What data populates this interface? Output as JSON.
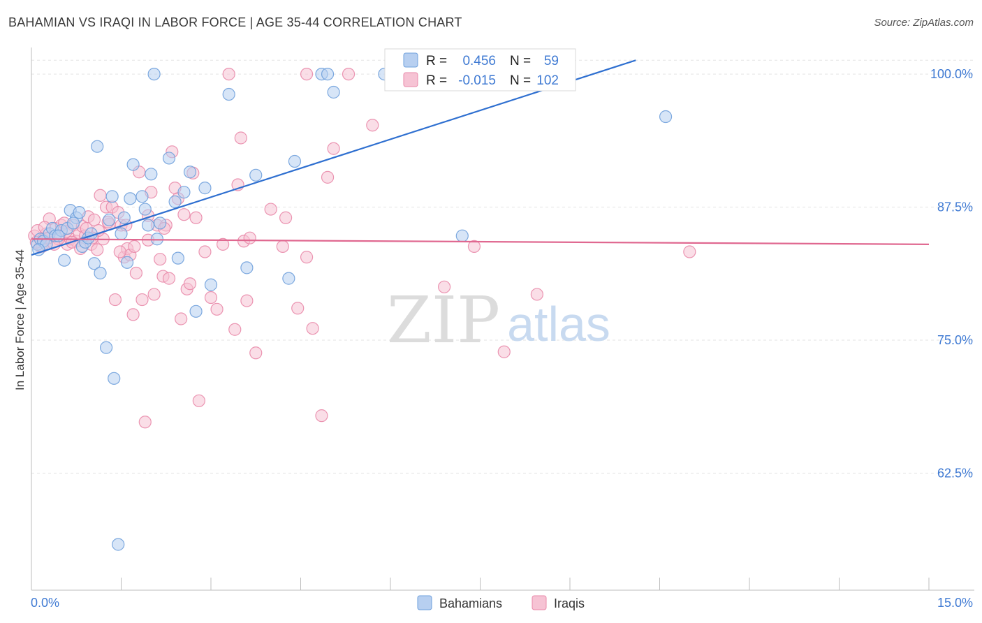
{
  "title": "BAHAMIAN VS IRAQI IN LABOR FORCE | AGE 35-44 CORRELATION CHART",
  "source": "Source: ZipAtlas.com",
  "watermark": {
    "zip": "ZIP",
    "atlas": "atlas"
  },
  "colors": {
    "blue": "#6fa0dc",
    "blue_fill": "#b7cff0",
    "blue_line": "#2e6fd0",
    "pink": "#e98aaa",
    "pink_fill": "#f6c3d4",
    "pink_line": "#e06890",
    "tick_label": "#3f7ad3",
    "grid": "#e3e3e3"
  },
  "stats": {
    "r_label": "R =",
    "n_label": "N =",
    "bahamians": {
      "r": "0.456",
      "n": "59"
    },
    "iraqis": {
      "r": "-0.015",
      "n": "102"
    }
  },
  "chart_data": {
    "type": "scatter",
    "title": "BAHAMIAN VS IRAQI IN LABOR FORCE | AGE 35-44 CORRELATION CHART",
    "xlabel": "",
    "ylabel": "In Labor Force | Age 35-44",
    "xlim": [
      0,
      15
    ],
    "ylim": [
      51.5,
      102.5
    ],
    "x_tick_labels": [
      "0.0%",
      "15.0%"
    ],
    "y_ticks": [
      62.5,
      75.0,
      87.5,
      100.0
    ],
    "y_tick_labels": [
      "62.5%",
      "75.0%",
      "87.5%",
      "100.0%"
    ],
    "grid": true,
    "legend": [
      "Bahamians",
      "Iraqis"
    ],
    "series": [
      {
        "name": "Bahamians",
        "trend": {
          "x0": 0.0,
          "y0": 83.0,
          "x1": 10.1,
          "y1": 101.3
        },
        "points": [
          [
            0.1,
            84.0
          ],
          [
            0.15,
            84.5
          ],
          [
            0.2,
            84.3
          ],
          [
            0.3,
            85.0
          ],
          [
            0.35,
            85.5
          ],
          [
            0.4,
            84.8
          ],
          [
            0.5,
            85.3
          ],
          [
            0.55,
            82.5
          ],
          [
            0.65,
            87.2
          ],
          [
            0.75,
            86.5
          ],
          [
            0.8,
            87.0
          ],
          [
            0.85,
            83.8
          ],
          [
            0.9,
            84.2
          ],
          [
            0.95,
            84.6
          ],
          [
            1.05,
            82.2
          ],
          [
            1.1,
            93.2
          ],
          [
            1.15,
            81.3
          ],
          [
            1.25,
            74.3
          ],
          [
            1.3,
            86.3
          ],
          [
            1.35,
            88.5
          ],
          [
            1.38,
            71.4
          ],
          [
            1.45,
            55.8
          ],
          [
            1.5,
            85.0
          ],
          [
            1.55,
            86.5
          ],
          [
            1.6,
            82.3
          ],
          [
            1.65,
            88.3
          ],
          [
            1.7,
            91.5
          ],
          [
            1.85,
            88.5
          ],
          [
            1.9,
            87.3
          ],
          [
            1.95,
            85.8
          ],
          [
            2.0,
            90.6
          ],
          [
            2.05,
            100.0
          ],
          [
            2.1,
            84.5
          ],
          [
            2.15,
            86.0
          ],
          [
            2.3,
            92.1
          ],
          [
            2.4,
            88.0
          ],
          [
            2.45,
            82.7
          ],
          [
            2.55,
            88.9
          ],
          [
            2.65,
            90.8
          ],
          [
            2.75,
            77.7
          ],
          [
            2.9,
            89.3
          ],
          [
            3.0,
            80.2
          ],
          [
            3.3,
            98.1
          ],
          [
            3.6,
            81.8
          ],
          [
            3.75,
            90.5
          ],
          [
            4.3,
            80.8
          ],
          [
            4.4,
            91.8
          ],
          [
            4.85,
            100.0
          ],
          [
            4.95,
            100.0
          ],
          [
            5.05,
            98.3
          ],
          [
            5.9,
            100.0
          ],
          [
            7.2,
            84.8
          ],
          [
            10.6,
            96.0
          ],
          [
            0.25,
            84.0
          ],
          [
            0.6,
            85.5
          ],
          [
            0.45,
            84.8
          ],
          [
            1.0,
            85.0
          ],
          [
            0.7,
            86.0
          ],
          [
            0.12,
            83.5
          ]
        ]
      },
      {
        "name": "Iraqis",
        "trend": {
          "x0": 0.0,
          "y0": 84.5,
          "x1": 15.0,
          "y1": 84.0
        },
        "points": [
          [
            0.05,
            84.8
          ],
          [
            0.1,
            85.3
          ],
          [
            0.15,
            83.8
          ],
          [
            0.2,
            84.5
          ],
          [
            0.25,
            85.0
          ],
          [
            0.3,
            86.4
          ],
          [
            0.35,
            84.2
          ],
          [
            0.4,
            85.5
          ],
          [
            0.5,
            85.8
          ],
          [
            0.55,
            86.0
          ],
          [
            0.6,
            84.0
          ],
          [
            0.65,
            84.5
          ],
          [
            0.7,
            85.8
          ],
          [
            0.75,
            84.3
          ],
          [
            0.8,
            85.0
          ],
          [
            0.85,
            85.7
          ],
          [
            0.9,
            84.8
          ],
          [
            0.95,
            86.6
          ],
          [
            1.0,
            84.0
          ],
          [
            1.05,
            86.3
          ],
          [
            1.1,
            83.5
          ],
          [
            1.15,
            88.6
          ],
          [
            1.2,
            84.5
          ],
          [
            1.25,
            87.5
          ],
          [
            1.3,
            85.9
          ],
          [
            1.35,
            87.5
          ],
          [
            1.4,
            78.8
          ],
          [
            1.45,
            87.0
          ],
          [
            1.5,
            85.8
          ],
          [
            1.55,
            82.8
          ],
          [
            1.6,
            83.6
          ],
          [
            1.65,
            83.0
          ],
          [
            1.7,
            77.4
          ],
          [
            1.75,
            81.3
          ],
          [
            1.8,
            90.8
          ],
          [
            1.85,
            78.8
          ],
          [
            1.9,
            67.3
          ],
          [
            1.95,
            86.7
          ],
          [
            2.0,
            88.9
          ],
          [
            2.05,
            79.3
          ],
          [
            2.1,
            85.8
          ],
          [
            2.15,
            82.6
          ],
          [
            2.2,
            81.0
          ],
          [
            2.25,
            85.8
          ],
          [
            2.3,
            80.8
          ],
          [
            2.35,
            92.7
          ],
          [
            2.4,
            89.3
          ],
          [
            2.45,
            88.3
          ],
          [
            2.5,
            77.0
          ],
          [
            2.55,
            86.8
          ],
          [
            2.6,
            79.8
          ],
          [
            2.65,
            80.3
          ],
          [
            2.7,
            90.7
          ],
          [
            2.75,
            86.5
          ],
          [
            2.8,
            69.3
          ],
          [
            2.9,
            83.3
          ],
          [
            3.0,
            79.0
          ],
          [
            3.1,
            77.9
          ],
          [
            3.2,
            84.0
          ],
          [
            3.4,
            76.0
          ],
          [
            3.45,
            89.6
          ],
          [
            3.5,
            94.0
          ],
          [
            3.55,
            84.3
          ],
          [
            3.6,
            78.7
          ],
          [
            3.65,
            84.6
          ],
          [
            3.75,
            73.8
          ],
          [
            4.0,
            87.3
          ],
          [
            4.2,
            83.8
          ],
          [
            4.25,
            86.5
          ],
          [
            4.45,
            78.0
          ],
          [
            4.6,
            82.8
          ],
          [
            4.7,
            76.1
          ],
          [
            4.85,
            67.9
          ],
          [
            4.95,
            90.3
          ],
          [
            5.05,
            93.0
          ],
          [
            5.3,
            100.0
          ],
          [
            5.7,
            95.2
          ],
          [
            6.9,
            80.0
          ],
          [
            7.4,
            83.8
          ],
          [
            7.9,
            73.9
          ],
          [
            8.45,
            79.3
          ],
          [
            11.0,
            83.3
          ],
          [
            3.3,
            100.0
          ],
          [
            4.6,
            100.0
          ],
          [
            0.18,
            83.8
          ],
          [
            0.45,
            84.5
          ],
          [
            1.12,
            85.3
          ],
          [
            1.48,
            83.3
          ],
          [
            2.22,
            85.5
          ],
          [
            0.68,
            84.2
          ],
          [
            1.02,
            84.6
          ],
          [
            0.82,
            83.6
          ],
          [
            1.58,
            85.8
          ],
          [
            1.28,
            86.1
          ],
          [
            0.38,
            84.0
          ],
          [
            0.58,
            85.2
          ],
          [
            1.95,
            84.4
          ],
          [
            0.08,
            84.2
          ],
          [
            0.22,
            85.6
          ],
          [
            1.72,
            83.8
          ],
          [
            0.28,
            84.6
          ],
          [
            0.92,
            85.5
          ]
        ]
      }
    ]
  }
}
